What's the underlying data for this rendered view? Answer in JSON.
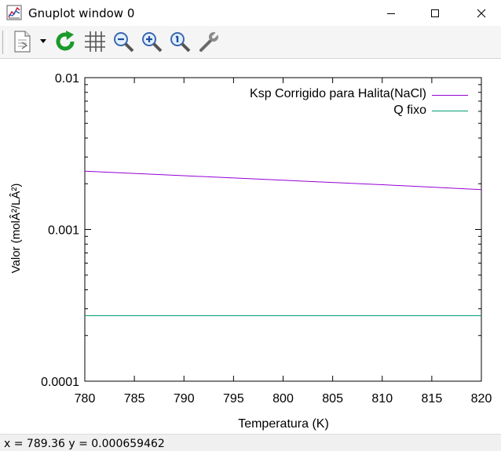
{
  "window": {
    "title": "Gnuplot window 0"
  },
  "toolbar": {
    "icons": [
      "copy-to-clipboard-icon",
      "dropdown-arrow-icon",
      "replot-icon",
      "grid-icon",
      "zoom-out-icon",
      "zoom-in-icon",
      "unzoom-icon",
      "options-wrench-icon"
    ]
  },
  "status": {
    "text": "x = 789.36 y = 0.000659462"
  },
  "colors": {
    "ksp_series": "#9400d3",
    "q_series": "#009e73",
    "replot_green": "#1a9a2a"
  },
  "chart_data": {
    "type": "line",
    "title": "",
    "xlabel": "Temperatura (K)",
    "ylabel": "Valor (molÂ²/LÂ²)",
    "xlim": [
      780,
      820
    ],
    "ylim": [
      0.0001,
      0.01
    ],
    "y_scale": "log",
    "x_ticks": [
      780,
      785,
      790,
      795,
      800,
      805,
      810,
      815,
      820
    ],
    "x_tick_labels": [
      "780",
      "785",
      "790",
      "795",
      "800",
      "805",
      "810",
      "815",
      "820"
    ],
    "y_ticks": [
      0.0001,
      0.001,
      0.01
    ],
    "y_tick_labels": [
      "0.0001",
      "0.001",
      "0.01"
    ],
    "grid": false,
    "legend_position": "top-right",
    "series": [
      {
        "name": "Ksp Corrigido para Halita(NaCl)",
        "x": [
          780,
          790,
          800,
          810,
          820
        ],
        "y": [
          0.00242,
          0.00226,
          0.00211,
          0.00197,
          0.00183
        ]
      },
      {
        "name": "Q fixo",
        "x": [
          780,
          820
        ],
        "y": [
          0.00027,
          0.00027
        ]
      }
    ]
  }
}
